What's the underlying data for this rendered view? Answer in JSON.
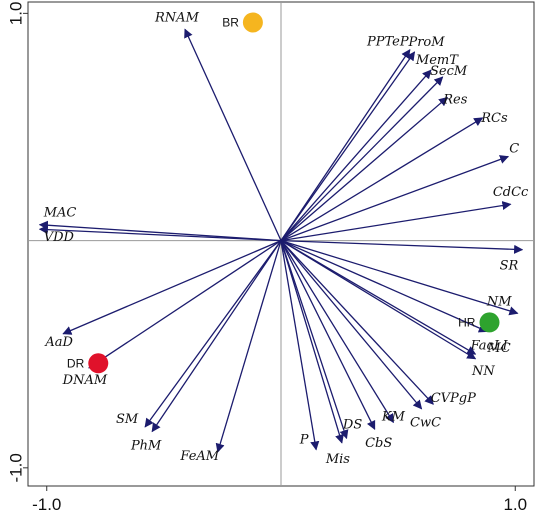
{
  "chart_data": {
    "type": "scatter",
    "subtype": "pca-biplot",
    "title": "",
    "xlabel": "",
    "ylabel": "",
    "xlim": [
      -1.08,
      1.08
    ],
    "ylim": [
      -1.08,
      1.05
    ],
    "x_ticks": [
      {
        "value": -1.0,
        "label": "-1.0"
      },
      {
        "value": 1.0,
        "label": "1.0"
      }
    ],
    "y_ticks": [
      {
        "value": 1.0,
        "label": "1.0"
      },
      {
        "value": -1.0,
        "label": "-1.0"
      }
    ],
    "grid": false,
    "zero_lines": true,
    "arrow_color": "#1c1c6e",
    "vectors": [
      {
        "name": "RNAM",
        "x": -0.41,
        "y": 0.93
      },
      {
        "name": "PPTeP",
        "x": 0.55,
        "y": 0.84
      },
      {
        "name": "ProM",
        "x": 0.57,
        "y": 0.83
      },
      {
        "name": "MemT",
        "x": 0.64,
        "y": 0.75
      },
      {
        "name": "SecM",
        "x": 0.69,
        "y": 0.72
      },
      {
        "name": "Res",
        "x": 0.71,
        "y": 0.63
      },
      {
        "name": "RCs",
        "x": 0.86,
        "y": 0.54
      },
      {
        "name": "C",
        "x": 0.97,
        "y": 0.37
      },
      {
        "name": "CdCc",
        "x": 0.98,
        "y": 0.16
      },
      {
        "name": "MAC",
        "x": -1.03,
        "y": 0.07
      },
      {
        "name": "VDD",
        "x": -1.03,
        "y": 0.05
      },
      {
        "name": "SR",
        "x": 1.03,
        "y": -0.04
      },
      {
        "name": "NM",
        "x": 1.01,
        "y": -0.32
      },
      {
        "name": "FacLI",
        "x": 0.88,
        "y": -0.4
      },
      {
        "name": "MC",
        "x": 0.83,
        "y": -0.5
      },
      {
        "name": "NN",
        "x": 0.83,
        "y": -0.52
      },
      {
        "name": "AaD",
        "x": -0.93,
        "y": -0.41
      },
      {
        "name": "DNAM",
        "x": -0.82,
        "y": -0.56
      },
      {
        "name": "CVPgP",
        "x": 0.65,
        "y": -0.72
      },
      {
        "name": "CwC",
        "x": 0.6,
        "y": -0.74
      },
      {
        "name": "KM",
        "x": 0.48,
        "y": -0.8
      },
      {
        "name": "CbS",
        "x": 0.4,
        "y": -0.83
      },
      {
        "name": "DS",
        "x": 0.28,
        "y": -0.87
      },
      {
        "name": "Mis",
        "x": 0.26,
        "y": -0.89
      },
      {
        "name": "P",
        "x": 0.15,
        "y": -0.92
      },
      {
        "name": "FeAM",
        "x": -0.27,
        "y": -0.93
      },
      {
        "name": "SM",
        "x": -0.58,
        "y": -0.82
      },
      {
        "name": "PhM",
        "x": -0.55,
        "y": -0.84
      }
    ],
    "groups": [
      {
        "name": "BR",
        "x": -0.12,
        "y": 0.96,
        "color": "#f5b51f"
      },
      {
        "name": "HR",
        "x": 0.89,
        "y": -0.36,
        "color": "#2ea32e"
      },
      {
        "name": "DR",
        "x": -0.78,
        "y": -0.54,
        "color": "#e0122b"
      }
    ]
  }
}
